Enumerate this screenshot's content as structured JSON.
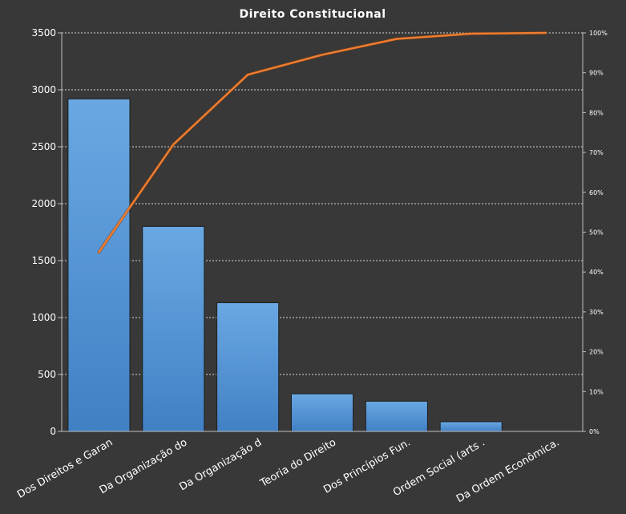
{
  "chart_data": {
    "type": "bar",
    "title": "Direito  Constitucional",
    "categories": [
      "Dos Direitos e Garan",
      "Da Organização do",
      "Da Organização d",
      "Teoria do Direito",
      "Dos Princípios Fun.",
      "Ordem Social (arts .",
      "Da Ordem Econômica."
    ],
    "series": [
      {
        "values": [
          2920,
          1800,
          1130,
          330,
          265,
          85,
          0
        ]
      },
      {
        "type": "line",
        "values": [
          0.45,
          0.72,
          0.895,
          0.945,
          0.985,
          0.998,
          1.0
        ]
      }
    ],
    "ylim": [
      0,
      3500
    ],
    "yticks": [
      0,
      500,
      1000,
      1500,
      2000,
      2500,
      3000,
      3500
    ],
    "y2lim": [
      0,
      1
    ],
    "y2ticks": [
      "0%",
      "10%",
      "20%",
      "30%",
      "40%",
      "50%",
      "60%",
      "70%",
      "80%",
      "90%",
      "100%"
    ],
    "grid": true,
    "colors": {
      "bar": "#5b9bd5",
      "line": "#ed7d31",
      "background": "#383838",
      "grid": "#d9d9d9"
    }
  }
}
